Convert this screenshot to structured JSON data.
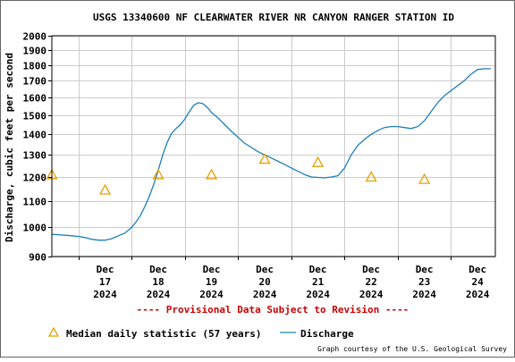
{
  "chart_data": {
    "type": "line",
    "title": "USGS 13340600 NF CLEARWATER RIVER NR CANYON RANGER STATION ID",
    "ylabel": "Discharge, cubic feet per second",
    "xlabel": "",
    "y_scale": "log",
    "ylim": [
      900,
      2000
    ],
    "y_ticks": [
      900,
      1000,
      1100,
      1200,
      1300,
      1400,
      1500,
      1600,
      1700,
      1800,
      1900,
      2000
    ],
    "x_ticks": [
      {
        "date": "2024-12-17",
        "line1": "Dec",
        "line2": "17",
        "line3": "2024"
      },
      {
        "date": "2024-12-18",
        "line1": "Dec",
        "line2": "18",
        "line3": "2024"
      },
      {
        "date": "2024-12-19",
        "line1": "Dec",
        "line2": "19",
        "line3": "2024"
      },
      {
        "date": "2024-12-20",
        "line1": "Dec",
        "line2": "20",
        "line3": "2024"
      },
      {
        "date": "2024-12-21",
        "line1": "Dec",
        "line2": "21",
        "line3": "2024"
      },
      {
        "date": "2024-12-22",
        "line1": "Dec",
        "line2": "22",
        "line3": "2024"
      },
      {
        "date": "2024-12-23",
        "line1": "Dec",
        "line2": "23",
        "line3": "2024"
      },
      {
        "date": "2024-12-24",
        "line1": "Dec",
        "line2": "24",
        "line3": "2024"
      }
    ],
    "grid": true,
    "series": [
      {
        "name": "Discharge",
        "color": "#1c7fb8",
        "marker": "line",
        "points": [
          [
            "2024-12-16 12:00",
            975
          ],
          [
            "2024-12-16 15:00",
            974
          ],
          [
            "2024-12-16 18:00",
            972
          ],
          [
            "2024-12-16 21:00",
            970
          ],
          [
            "2024-12-17 00:00",
            968
          ],
          [
            "2024-12-17 03:00",
            964
          ],
          [
            "2024-12-17 06:00",
            958
          ],
          [
            "2024-12-17 09:00",
            955
          ],
          [
            "2024-12-17 12:00",
            955
          ],
          [
            "2024-12-17 15:00",
            960
          ],
          [
            "2024-12-17 18:00",
            970
          ],
          [
            "2024-12-17 21:00",
            980
          ],
          [
            "2024-12-18 00:00",
            1000
          ],
          [
            "2024-12-18 02:00",
            1020
          ],
          [
            "2024-12-18 04:00",
            1045
          ],
          [
            "2024-12-18 06:00",
            1080
          ],
          [
            "2024-12-18 08:00",
            1120
          ],
          [
            "2024-12-18 10:00",
            1170
          ],
          [
            "2024-12-18 12:00",
            1230
          ],
          [
            "2024-12-18 14:00",
            1300
          ],
          [
            "2024-12-18 16:00",
            1360
          ],
          [
            "2024-12-18 18:00",
            1405
          ],
          [
            "2024-12-18 20:00",
            1430
          ],
          [
            "2024-12-18 22:00",
            1450
          ],
          [
            "2024-12-19 00:00",
            1480
          ],
          [
            "2024-12-19 02:00",
            1520
          ],
          [
            "2024-12-19 04:00",
            1555
          ],
          [
            "2024-12-19 06:00",
            1570
          ],
          [
            "2024-12-19 08:00",
            1565
          ],
          [
            "2024-12-19 10:00",
            1545
          ],
          [
            "2024-12-19 12:00",
            1515
          ],
          [
            "2024-12-19 15:00",
            1485
          ],
          [
            "2024-12-19 18:00",
            1450
          ],
          [
            "2024-12-19 21:00",
            1415
          ],
          [
            "2024-12-20 00:00",
            1385
          ],
          [
            "2024-12-20 03:00",
            1355
          ],
          [
            "2024-12-20 06:00",
            1335
          ],
          [
            "2024-12-20 09:00",
            1315
          ],
          [
            "2024-12-20 12:00",
            1300
          ],
          [
            "2024-12-20 15:00",
            1285
          ],
          [
            "2024-12-20 18:00",
            1270
          ],
          [
            "2024-12-20 21:00",
            1255
          ],
          [
            "2024-12-21 00:00",
            1240
          ],
          [
            "2024-12-21 03:00",
            1225
          ],
          [
            "2024-12-21 06:00",
            1210
          ],
          [
            "2024-12-21 09:00",
            1200
          ],
          [
            "2024-12-21 12:00",
            1198
          ],
          [
            "2024-12-21 15:00",
            1196
          ],
          [
            "2024-12-21 18:00",
            1200
          ],
          [
            "2024-12-21 21:00",
            1205
          ],
          [
            "2024-12-22 00:00",
            1240
          ],
          [
            "2024-12-22 03:00",
            1300
          ],
          [
            "2024-12-22 06:00",
            1345
          ],
          [
            "2024-12-22 09:00",
            1375
          ],
          [
            "2024-12-22 12:00",
            1400
          ],
          [
            "2024-12-22 15:00",
            1420
          ],
          [
            "2024-12-22 18:00",
            1435
          ],
          [
            "2024-12-22 21:00",
            1440
          ],
          [
            "2024-12-23 00:00",
            1440
          ],
          [
            "2024-12-23 03:00",
            1435
          ],
          [
            "2024-12-23 06:00",
            1430
          ],
          [
            "2024-12-23 09:00",
            1440
          ],
          [
            "2024-12-23 12:00",
            1470
          ],
          [
            "2024-12-23 15:00",
            1520
          ],
          [
            "2024-12-23 18:00",
            1570
          ],
          [
            "2024-12-23 21:00",
            1610
          ],
          [
            "2024-12-24 00:00",
            1640
          ],
          [
            "2024-12-24 03:00",
            1670
          ],
          [
            "2024-12-24 06:00",
            1700
          ],
          [
            "2024-12-24 09:00",
            1740
          ],
          [
            "2024-12-24 12:00",
            1770
          ],
          [
            "2024-12-24 15:00",
            1775
          ],
          [
            "2024-12-24 18:00",
            1775
          ]
        ]
      },
      {
        "name": "Median daily statistic (57 years)",
        "color": "#e6a000",
        "marker": "triangle",
        "points": [
          [
            "2024-12-16 12:00",
            1210
          ],
          [
            "2024-12-17 12:00",
            1145
          ],
          [
            "2024-12-18 12:00",
            1210
          ],
          [
            "2024-12-19 12:00",
            1210
          ],
          [
            "2024-12-20 12:00",
            1280
          ],
          [
            "2024-12-21 12:00",
            1265
          ],
          [
            "2024-12-22 12:00",
            1200
          ],
          [
            "2024-12-23 12:00",
            1190
          ]
        ]
      }
    ],
    "legend": {
      "placement": "bottom",
      "median_label": "Median daily statistic (57 years)",
      "discharge_label": "Discharge"
    },
    "provisional_notice": "---- Provisional Data Subject to Revision ----",
    "credit": "Graph courtesy of the U.S. Geological Survey",
    "colors": {
      "grid": "#cccccc",
      "axis": "#000000",
      "notice": "#cc0000",
      "frame": "#666666"
    }
  }
}
